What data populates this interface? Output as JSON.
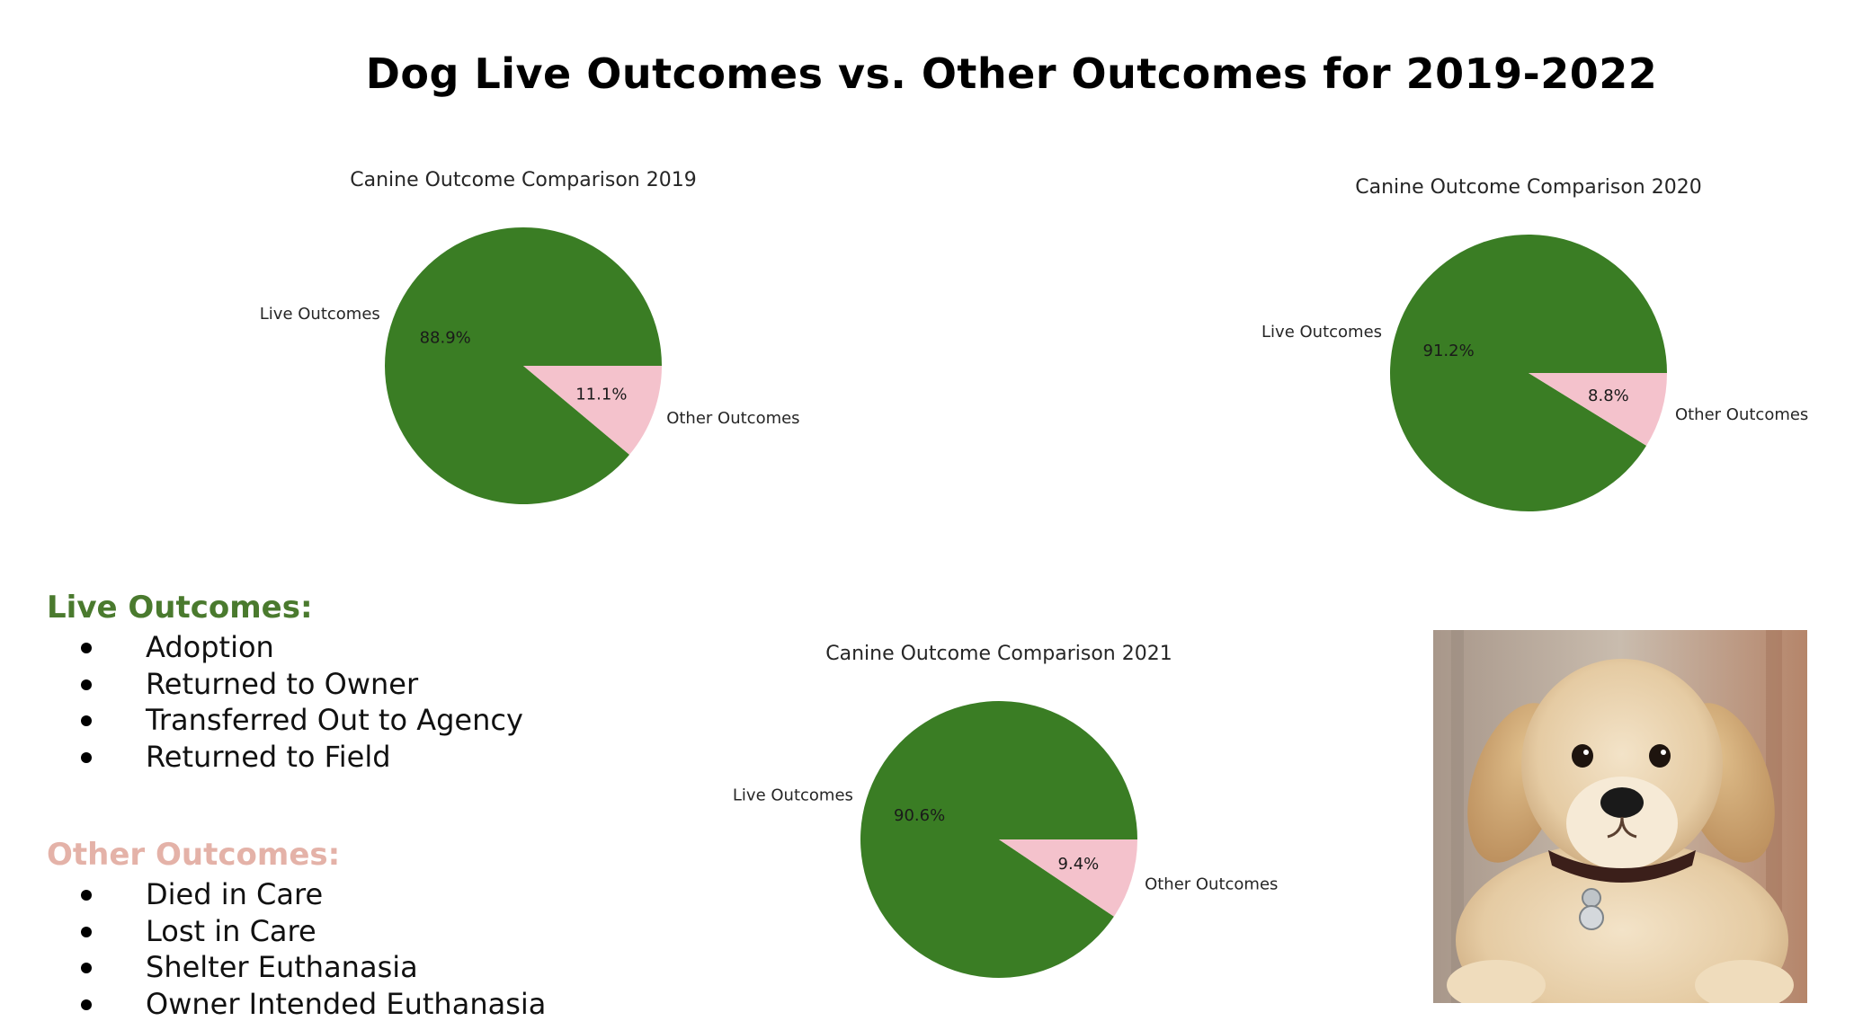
{
  "title": "Dog Live Outcomes vs. Other Outcomes for 2019-2022",
  "colors": {
    "live": "#3a7d24",
    "other": "#f4c2cc",
    "live_heading": "#4a7a2e",
    "other_heading": "#e4b2a8"
  },
  "chart_data": [
    {
      "type": "pie",
      "title": "Canine Outcome Comparison 2019",
      "labels": [
        "Live Outcomes",
        "Other Outcomes"
      ],
      "values": [
        88.9,
        11.1
      ],
      "value_labels": [
        "88.9%",
        "11.1%"
      ]
    },
    {
      "type": "pie",
      "title": "Canine Outcome Comparison 2020",
      "labels": [
        "Live Outcomes",
        "Other Outcomes"
      ],
      "values": [
        91.2,
        8.8
      ],
      "value_labels": [
        "91.2%",
        "8.8%"
      ]
    },
    {
      "type": "pie",
      "title": "Canine Outcome Comparison 2021",
      "labels": [
        "Live Outcomes",
        "Other Outcomes"
      ],
      "values": [
        90.6,
        9.4
      ],
      "value_labels": [
        "90.6%",
        "9.4%"
      ]
    }
  ],
  "legend": {
    "live": {
      "heading": "Live Outcomes:",
      "items": [
        "Adoption",
        "Returned to Owner",
        "Transferred Out to Agency",
        "Returned to Field"
      ]
    },
    "other": {
      "heading": "Other Outcomes:",
      "items": [
        "Died in Care",
        "Lost in Care",
        "Shelter Euthanasia",
        "Owner Intended Euthanasia"
      ]
    }
  },
  "photo": {
    "subject": "golden-retriever-puppy"
  }
}
